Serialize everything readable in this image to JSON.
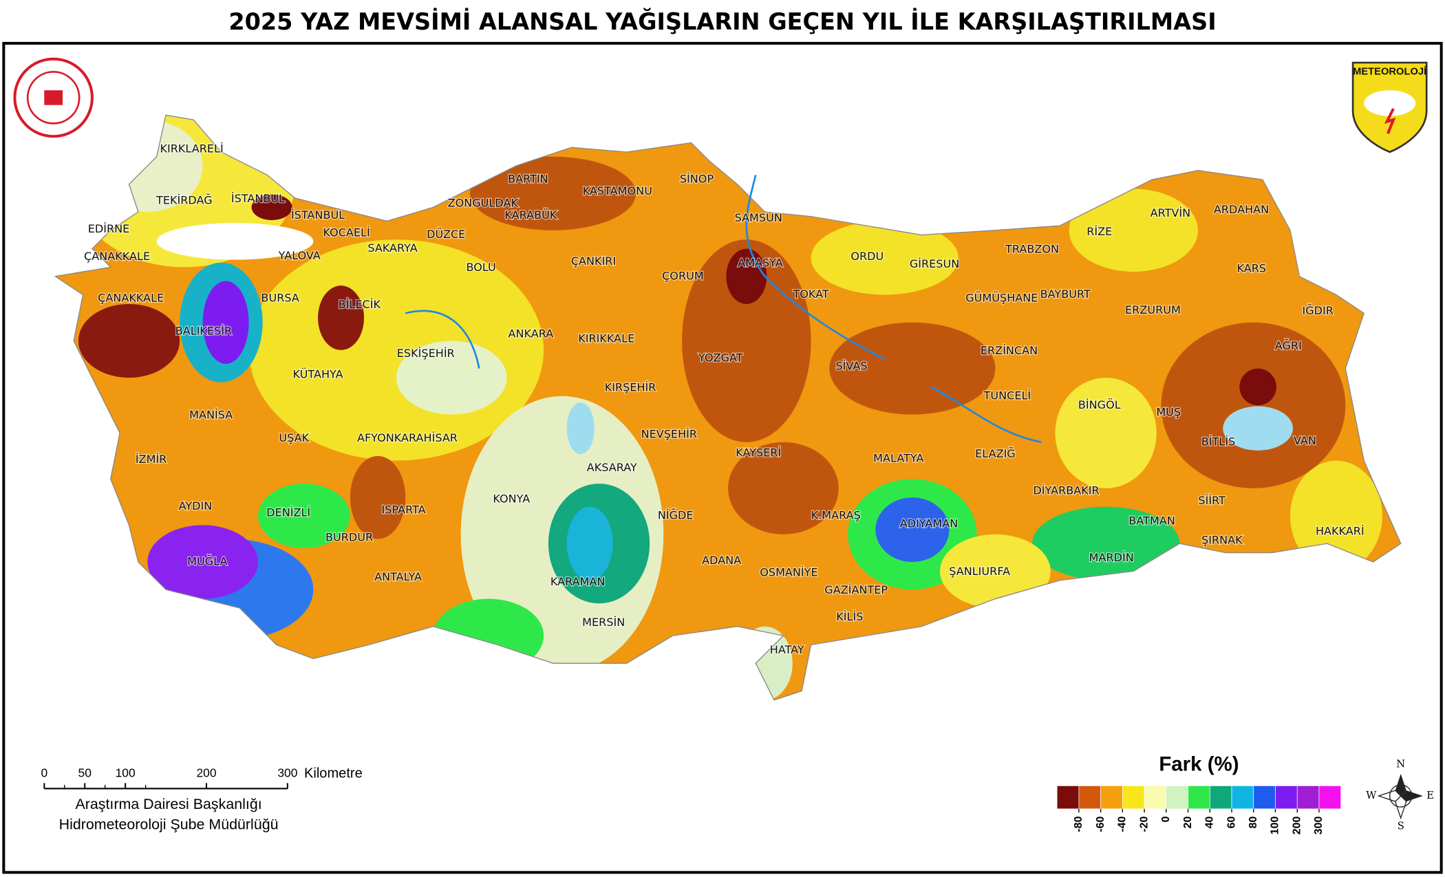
{
  "title": "2025 YAZ MEVSİMİ ALANSAL YAĞIŞLARIN GEÇEN YIL İLE KARŞILAŞTIRILMASI",
  "logo_text": "METEOROLOJİ",
  "provinces": [
    "KIRKLARELİ",
    "TEKİRDAĞ",
    "İSTANBUL",
    "İSTANBUL",
    "EDİRNE",
    "ÇANAKKALE",
    "YALOVA",
    "KOCAELİ",
    "SAKARYA",
    "DÜZCE",
    "ZONGULDAK",
    "BARTIN",
    "KARABÜK",
    "KASTAMONU",
    "SİNOP",
    "SAMSUN",
    "BOLU",
    "ÇANKIRI",
    "ÇORUM",
    "AMASYA",
    "TOKAT",
    "ORDU",
    "GİRESUN",
    "TRABZON",
    "RİZE",
    "ARTVİN",
    "ARDAHAN",
    "KARS",
    "ÇANAKKALE",
    "BURSA",
    "BİLECİK",
    "BALIKESİR",
    "ESKİŞEHİR",
    "ANKARA",
    "KIRIKKALE",
    "YOZGAT",
    "SİVAS",
    "GÜMÜŞHANE",
    "BAYBURT",
    "ERZURUM",
    "IĞDIR",
    "AĞRI",
    "ERZİNCAN",
    "KÜTAHYA",
    "KIRŞEHİR",
    "TUNCELİ",
    "BİNGÖL",
    "MUŞ",
    "MANİSA",
    "UŞAK",
    "AFYONKARAHİSAR",
    "NEVŞEHİR",
    "KAYSERİ",
    "MALATYA",
    "ELAZIĞ",
    "BİTLİS",
    "VAN",
    "İZMİR",
    "AKSARAY",
    "DİYARBAKIR",
    "SİİRT",
    "AYDIN",
    "DENİZLİ",
    "ISPARTA",
    "KONYA",
    "NİĞDE",
    "K.MARAŞ",
    "ADIYAMAN",
    "BATMAN",
    "ŞIRNAK",
    "HAKKARİ",
    "BURDUR",
    "MUĞLA",
    "ADANA",
    "MARDİN",
    "OSMANİYE",
    "ŞANLIURFA",
    "ANTALYA",
    "KARAMAN",
    "GAZİANTEP",
    "KİLİS",
    "MERSİN",
    "HATAY"
  ],
  "legend": {
    "title": "Fark (%)",
    "colors": [
      "#7a0c0c",
      "#d4580a",
      "#f5a10f",
      "#f7e61c",
      "#fbfbb0",
      "#d2f2c0",
      "#2ee84a",
      "#0fa87a",
      "#10b4e4",
      "#1f5cf0",
      "#7d1cf0",
      "#a01ed4",
      "#f510f0"
    ],
    "ticks": [
      -80,
      -60,
      -40,
      -20,
      0,
      20,
      40,
      60,
      80,
      100,
      200,
      300
    ]
  },
  "scale": {
    "ticks": [
      0,
      50,
      100,
      200,
      300
    ],
    "unit": "Kilometre"
  },
  "credits": [
    "Araştırma Dairesi Başkanlığı",
    "Hidrometeoroloji Şube Müdürlüğü"
  ],
  "compass": {
    "n": "N",
    "e": "E",
    "s": "S",
    "w": "W"
  }
}
